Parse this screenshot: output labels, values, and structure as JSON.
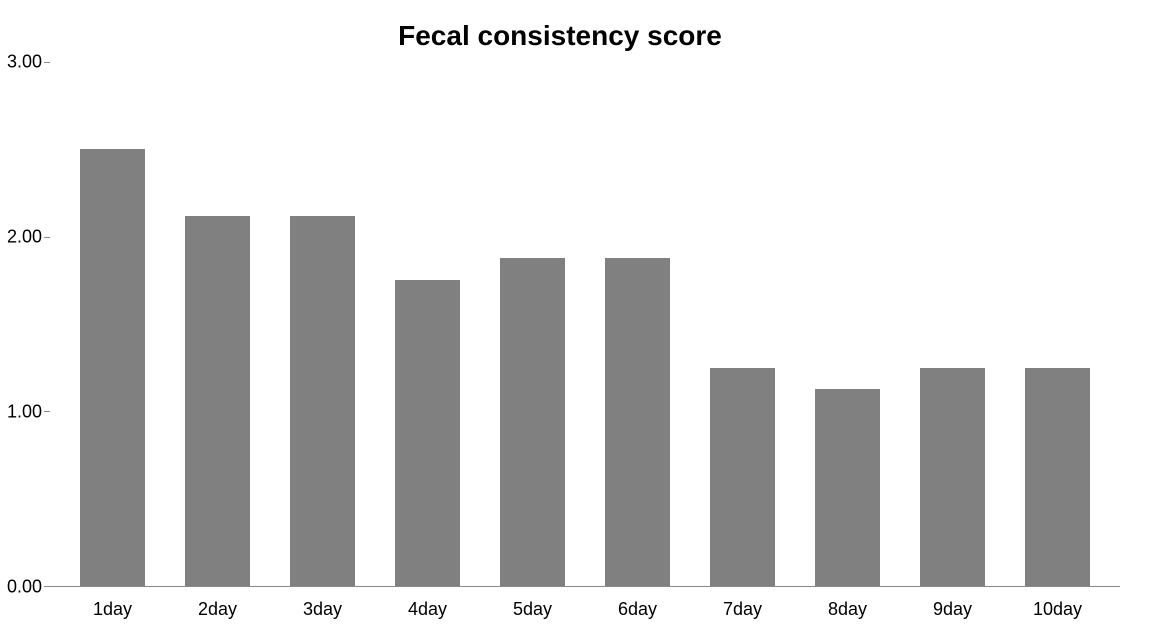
{
  "chart": {
    "type": "bar",
    "title": "Fecal consistency score",
    "title_fontsize": 28,
    "title_fontweight": "bold",
    "title_color": "#000000",
    "categories": [
      "1day",
      "2day",
      "3day",
      "4day",
      "5day",
      "6day",
      "7day",
      "8day",
      "9day",
      "10day"
    ],
    "values": [
      2.5,
      2.12,
      2.12,
      1.75,
      1.88,
      1.88,
      1.25,
      1.13,
      1.25,
      1.25
    ],
    "bar_color": "#808080",
    "background_color": "#ffffff",
    "ylim": [
      0,
      3
    ],
    "yticks": [
      0,
      1,
      2,
      3
    ],
    "ytick_labels": [
      "0.00",
      "1.00",
      "2.00",
      "3.00"
    ],
    "axis_line_color": "#888888",
    "tick_label_fontsize": 18,
    "tick_label_color": "#000000",
    "bar_width_ratio": 0.62
  }
}
